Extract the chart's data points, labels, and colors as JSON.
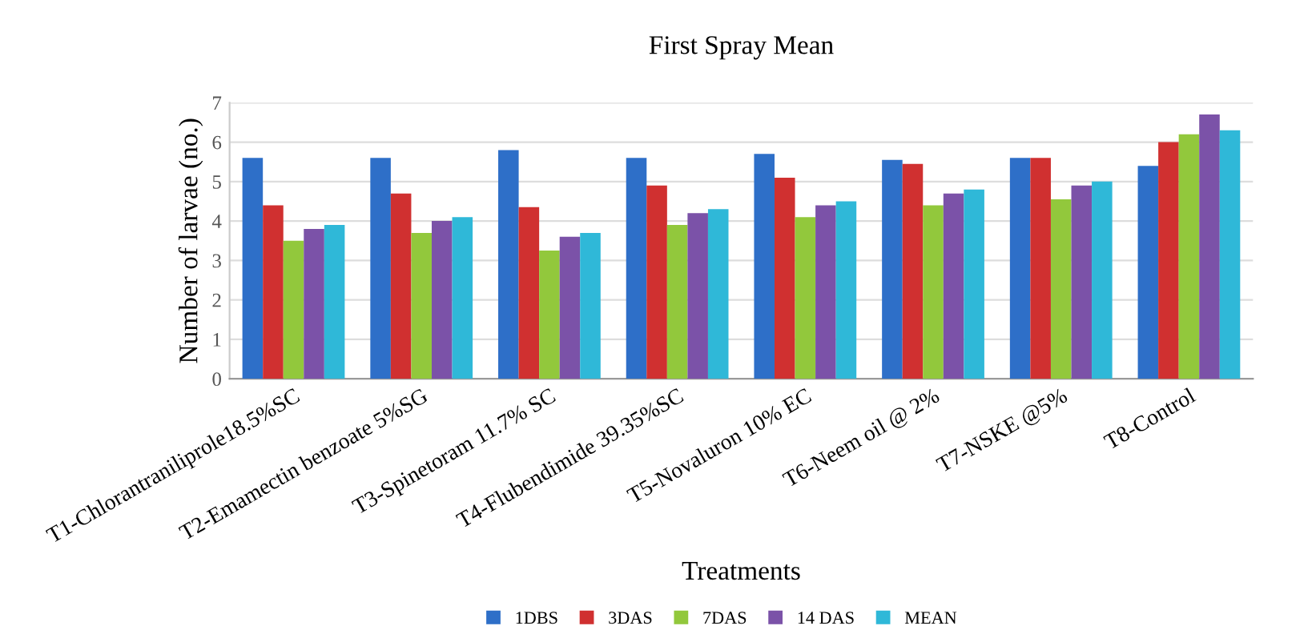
{
  "chart_data": {
    "type": "bar",
    "title": "First Spray Mean",
    "xlabel": "Treatments",
    "ylabel": "Number of larvae (no.)",
    "categories": [
      "T1-Chlorantraniliprole18.5%SC",
      "T2-Emamectin benzoate 5%SG",
      "T3-Spinetoram 11.7% SC",
      "T4-Flubendimide 39.35%SC",
      "T5-Novaluron 10% EC",
      "T6-Neem oil @ 2%",
      "T7-NSKE @5%",
      "T8-Control"
    ],
    "series": [
      {
        "name": "1DBS",
        "color": "#2e6fc8",
        "values": [
          5.6,
          5.6,
          5.8,
          5.6,
          5.7,
          5.55,
          5.6,
          5.4
        ]
      },
      {
        "name": "3DAS",
        "color": "#d03030",
        "values": [
          4.4,
          4.7,
          4.35,
          4.9,
          5.1,
          5.45,
          5.6,
          6.0
        ]
      },
      {
        "name": "7DAS",
        "color": "#92c83c",
        "values": [
          3.5,
          3.7,
          3.25,
          3.9,
          4.1,
          4.4,
          4.55,
          6.2
        ]
      },
      {
        "name": "14 DAS",
        "color": "#7b52a8",
        "values": [
          3.8,
          4.0,
          3.6,
          4.2,
          4.4,
          4.7,
          4.9,
          6.7
        ]
      },
      {
        "name": "MEAN",
        "color": "#2fb8d8",
        "values": [
          3.9,
          4.1,
          3.7,
          4.3,
          4.5,
          4.8,
          5.0,
          6.3
        ]
      }
    ],
    "ylim": [
      0,
      7
    ],
    "yticks": [
      0,
      1,
      2,
      3,
      4,
      5,
      6,
      7
    ],
    "grid": "y",
    "legend": "bottom"
  }
}
